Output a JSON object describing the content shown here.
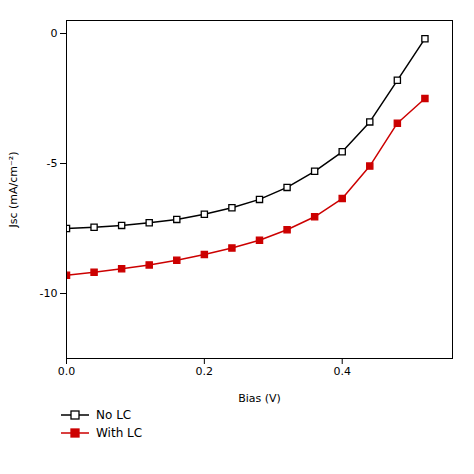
{
  "chart_data": {
    "type": "line",
    "x": [
      0.0,
      0.04,
      0.08,
      0.12,
      0.16,
      0.2,
      0.24,
      0.28,
      0.32,
      0.36,
      0.4,
      0.44,
      0.48,
      0.52
    ],
    "series": [
      {
        "name": "No LC",
        "color": "#000000",
        "marker": "square-open",
        "values": [
          -7.5,
          -7.45,
          -7.38,
          -7.28,
          -7.15,
          -6.95,
          -6.7,
          -6.38,
          -5.92,
          -5.3,
          -4.55,
          -3.4,
          -1.8,
          -0.2
        ]
      },
      {
        "name": "With LC",
        "color": "#cc0000",
        "marker": "square",
        "values": [
          -9.3,
          -9.18,
          -9.05,
          -8.9,
          -8.72,
          -8.5,
          -8.25,
          -7.95,
          -7.55,
          -7.05,
          -6.35,
          -5.1,
          -3.45,
          -2.5
        ]
      }
    ],
    "xlabel": "Bias (V)",
    "ylabel": "Jsc (mA/cm⁻²)",
    "xlim": [
      0.0,
      0.56
    ],
    "xticks": [
      {
        "value": 0.0,
        "label": "0.0"
      },
      0.2,
      0.4
    ],
    "ylim": [
      -12.5,
      0.5
    ],
    "yticks": [
      0,
      -5,
      -10
    ],
    "grid": false,
    "legend": "bottom"
  }
}
